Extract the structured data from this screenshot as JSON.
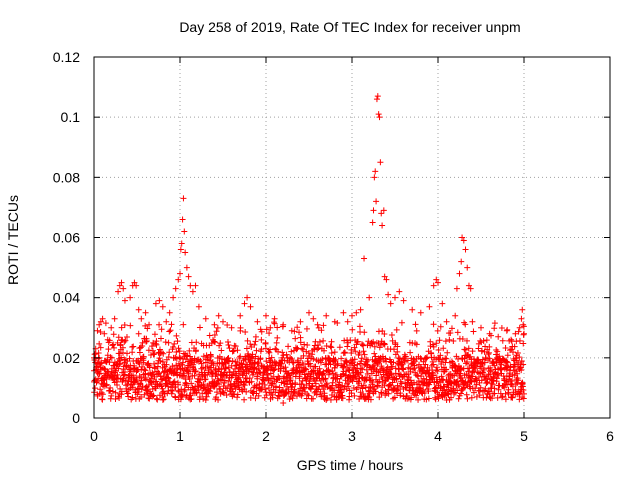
{
  "chart_data": {
    "type": "scatter",
    "title": "Day 258 of 2019, Rate Of TEC Index for receiver unpm",
    "xlabel": "GPS time / hours",
    "ylabel": "ROTI / TECUs",
    "xlim": [
      0,
      6
    ],
    "ylim": [
      0,
      0.12
    ],
    "xticks": [
      0,
      1,
      2,
      3,
      4,
      5,
      6
    ],
    "yticks": [
      0,
      0.02,
      0.04,
      0.06,
      0.08,
      0.1,
      0.12
    ],
    "xtick_labels": [
      "0",
      "1",
      "2",
      "3",
      "4",
      "5",
      "6"
    ],
    "ytick_labels": [
      "0",
      "0.02",
      "0.04",
      "0.06",
      "0.08",
      "0.1",
      "0.12"
    ],
    "grid": true,
    "marker": "+",
    "color": "#ff0000",
    "data_extent": [
      0,
      5
    ],
    "series": [
      {
        "name": "ROTI",
        "points": [
          [
            0.02,
            0.023
          ],
          [
            0.04,
            0.029
          ],
          [
            0.06,
            0.031
          ],
          [
            0.08,
            0.032
          ],
          [
            0.1,
            0.033
          ],
          [
            0.12,
            0.028
          ],
          [
            0.16,
            0.026
          ],
          [
            0.2,
            0.03
          ],
          [
            0.24,
            0.033
          ],
          [
            0.28,
            0.042
          ],
          [
            0.3,
            0.044
          ],
          [
            0.32,
            0.045
          ],
          [
            0.34,
            0.043
          ],
          [
            0.36,
            0.039
          ],
          [
            0.42,
            0.04
          ],
          [
            0.45,
            0.044
          ],
          [
            0.47,
            0.045
          ],
          [
            0.49,
            0.044
          ],
          [
            0.52,
            0.036
          ],
          [
            0.55,
            0.033
          ],
          [
            0.6,
            0.035
          ],
          [
            0.64,
            0.031
          ],
          [
            0.72,
            0.038
          ],
          [
            0.76,
            0.039
          ],
          [
            0.8,
            0.037
          ],
          [
            0.84,
            0.032
          ],
          [
            0.88,
            0.035
          ],
          [
            0.92,
            0.04
          ],
          [
            0.95,
            0.043
          ],
          [
            0.98,
            0.046
          ],
          [
            1.0,
            0.048
          ],
          [
            1.01,
            0.056
          ],
          [
            1.02,
            0.058
          ],
          [
            1.03,
            0.066
          ],
          [
            1.04,
            0.073
          ],
          [
            1.05,
            0.062
          ],
          [
            1.06,
            0.055
          ],
          [
            1.08,
            0.05
          ],
          [
            1.1,
            0.047
          ],
          [
            1.12,
            0.044
          ],
          [
            1.15,
            0.042
          ],
          [
            1.18,
            0.044
          ],
          [
            1.22,
            0.037
          ],
          [
            1.3,
            0.033
          ],
          [
            1.4,
            0.031
          ],
          [
            1.45,
            0.034
          ],
          [
            1.5,
            0.032
          ],
          [
            1.6,
            0.03
          ],
          [
            1.7,
            0.034
          ],
          [
            1.75,
            0.038
          ],
          [
            1.78,
            0.04
          ],
          [
            1.82,
            0.037
          ],
          [
            1.9,
            0.032
          ],
          [
            2.0,
            0.034
          ],
          [
            2.05,
            0.03
          ],
          [
            2.1,
            0.033
          ],
          [
            2.2,
            0.031
          ],
          [
            2.3,
            0.029
          ],
          [
            2.4,
            0.032
          ],
          [
            2.5,
            0.035
          ],
          [
            2.55,
            0.033
          ],
          [
            2.6,
            0.031
          ],
          [
            2.7,
            0.034
          ],
          [
            2.8,
            0.032
          ],
          [
            2.9,
            0.035
          ],
          [
            2.95,
            0.032
          ],
          [
            3.0,
            0.034
          ],
          [
            3.05,
            0.035
          ],
          [
            3.1,
            0.036
          ],
          [
            3.14,
            0.053
          ],
          [
            3.2,
            0.04
          ],
          [
            3.24,
            0.065
          ],
          [
            3.25,
            0.069
          ],
          [
            3.26,
            0.08
          ],
          [
            3.27,
            0.082
          ],
          [
            3.28,
            0.072
          ],
          [
            3.29,
            0.106
          ],
          [
            3.3,
            0.107
          ],
          [
            3.31,
            0.101
          ],
          [
            3.32,
            0.1
          ],
          [
            3.33,
            0.085
          ],
          [
            3.34,
            0.068
          ],
          [
            3.35,
            0.064
          ],
          [
            3.37,
            0.069
          ],
          [
            3.38,
            0.047
          ],
          [
            3.4,
            0.046
          ],
          [
            3.42,
            0.041
          ],
          [
            3.45,
            0.038
          ],
          [
            3.5,
            0.04
          ],
          [
            3.55,
            0.042
          ],
          [
            3.6,
            0.039
          ],
          [
            3.7,
            0.036
          ],
          [
            3.8,
            0.035
          ],
          [
            3.9,
            0.037
          ],
          [
            3.95,
            0.044
          ],
          [
            3.98,
            0.046
          ],
          [
            4.0,
            0.045
          ],
          [
            4.05,
            0.038
          ],
          [
            4.1,
            0.032
          ],
          [
            4.2,
            0.034
          ],
          [
            4.22,
            0.043
          ],
          [
            4.25,
            0.048
          ],
          [
            4.27,
            0.052
          ],
          [
            4.28,
            0.06
          ],
          [
            4.3,
            0.059
          ],
          [
            4.32,
            0.056
          ],
          [
            4.34,
            0.05
          ],
          [
            4.36,
            0.044
          ],
          [
            4.38,
            0.043
          ],
          [
            4.4,
            0.032
          ],
          [
            4.5,
            0.03
          ],
          [
            4.6,
            0.028
          ],
          [
            4.7,
            0.027
          ],
          [
            4.8,
            0.029
          ],
          [
            4.85,
            0.026
          ],
          [
            4.9,
            0.028
          ],
          [
            4.95,
            0.03
          ],
          [
            4.97,
            0.033
          ],
          [
            4.98,
            0.036
          ],
          [
            4.99,
            0.031
          ],
          [
            5.0,
            0.028
          ],
          [
            0.3,
            0.008
          ],
          [
            0.8,
            0.007
          ],
          [
            1.3,
            0.006
          ],
          [
            2.2,
            0.005
          ],
          [
            2.7,
            0.006
          ],
          [
            3.2,
            0.007
          ],
          [
            4.1,
            0.006
          ],
          [
            4.6,
            0.007
          ],
          [
            5.0,
            0.008
          ],
          [
            0.0,
            0.012
          ],
          [
            0.0,
            0.02
          ]
        ]
      }
    ]
  }
}
